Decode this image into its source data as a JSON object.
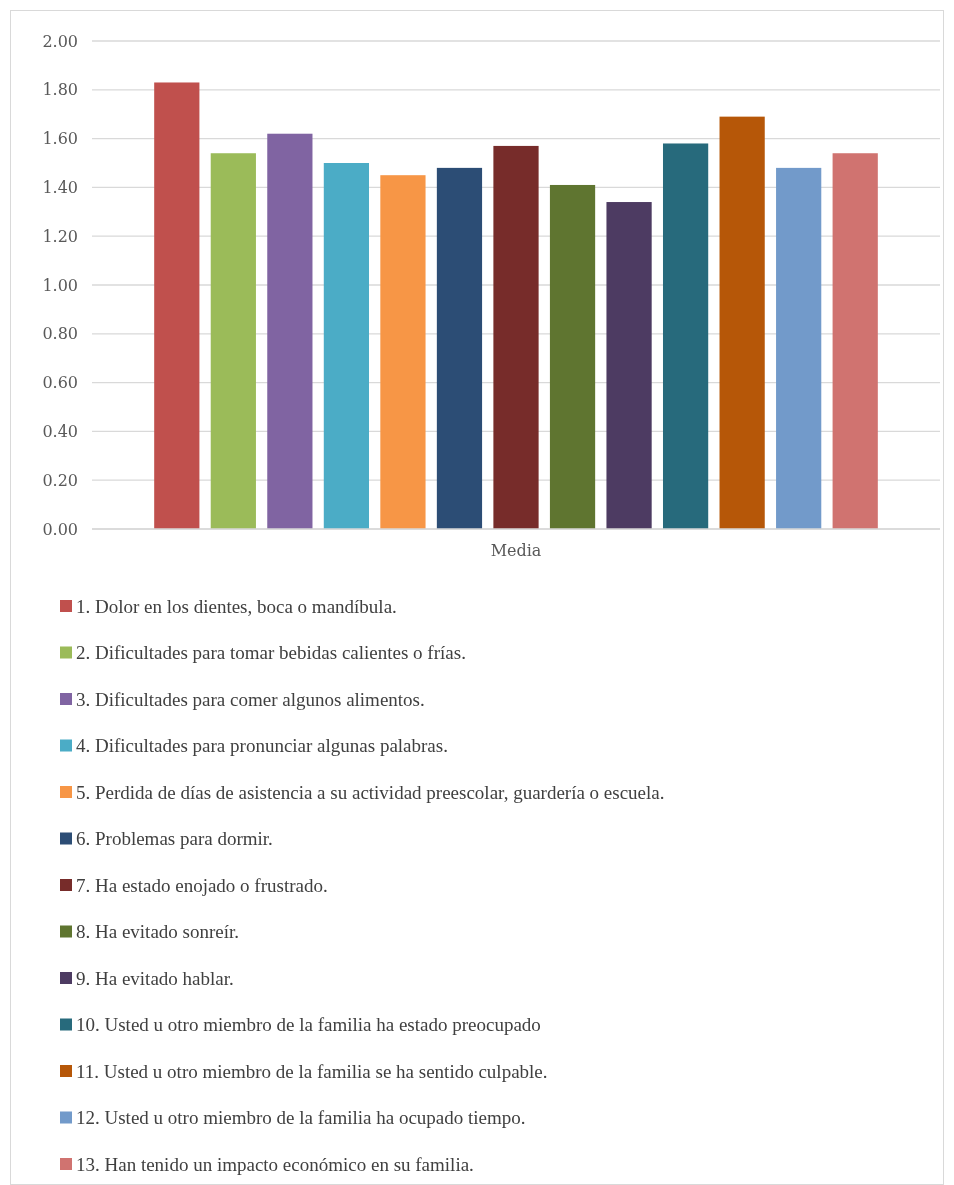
{
  "chart_data": {
    "type": "bar",
    "categories": [
      "Media"
    ],
    "ylim": [
      0,
      2
    ],
    "yticks": [
      {
        "value": 0,
        "label": "0.00"
      },
      {
        "value": 0.2,
        "label": "0.20"
      },
      {
        "value": 0.4,
        "label": "0.40"
      },
      {
        "value": 0.6,
        "label": "0.60"
      },
      {
        "value": 0.8,
        "label": "0.80"
      },
      {
        "value": 1,
        "label": "1.00"
      },
      {
        "value": 1.2,
        "label": "1.20"
      },
      {
        "value": 1.4,
        "label": "1.40"
      },
      {
        "value": 1.6,
        "label": "1.60"
      },
      {
        "value": 1.8,
        "label": "1.80"
      },
      {
        "value": 2,
        "label": "2.00"
      }
    ],
    "grid": "y",
    "legend": "bottom",
    "series": [
      {
        "name": "1. Dolor en los dientes, boca o mandíbula.",
        "color": "#c0504d",
        "values": [
          1.83
        ]
      },
      {
        "name": "2. Dificultades para tomar bebidas calientes o frías.",
        "color": "#9bbb59",
        "values": [
          1.54
        ]
      },
      {
        "name": "3. Dificultades para comer algunos alimentos.",
        "color": "#8064a2",
        "values": [
          1.62
        ]
      },
      {
        "name": "4. Dificultades para pronunciar algunas palabras.",
        "color": "#4bacc6",
        "values": [
          1.5
        ]
      },
      {
        "name": "5. Perdida de días de asistencia a su actividad preescolar, guardería o escuela.",
        "color": "#f79646",
        "values": [
          1.45
        ]
      },
      {
        "name": "6. Problemas para dormir.",
        "color": "#2c4d75",
        "values": [
          1.48
        ]
      },
      {
        "name": "7. Ha estado enojado o frustrado.",
        "color": "#772c2a",
        "values": [
          1.57
        ]
      },
      {
        "name": "8. Ha evitado sonreír.",
        "color": "#5f7530",
        "values": [
          1.41
        ]
      },
      {
        "name": "9. Ha evitado hablar.",
        "color": "#4d3b62",
        "values": [
          1.34
        ]
      },
      {
        "name": "10. Usted u otro miembro de la familia ha estado preocupado",
        "color": "#276a7c",
        "values": [
          1.58
        ]
      },
      {
        "name": "11. Usted u otro miembro de la familia se ha sentido culpable.",
        "color": "#b65708",
        "values": [
          1.69
        ]
      },
      {
        "name": "12. Usted u otro miembro de la familia ha ocupado tiempo.",
        "color": "#729aca",
        "values": [
          1.48
        ]
      },
      {
        "name": "13. Han tenido un impacto económico en su familia.",
        "color": "#d07370",
        "values": [
          1.54
        ]
      }
    ]
  }
}
